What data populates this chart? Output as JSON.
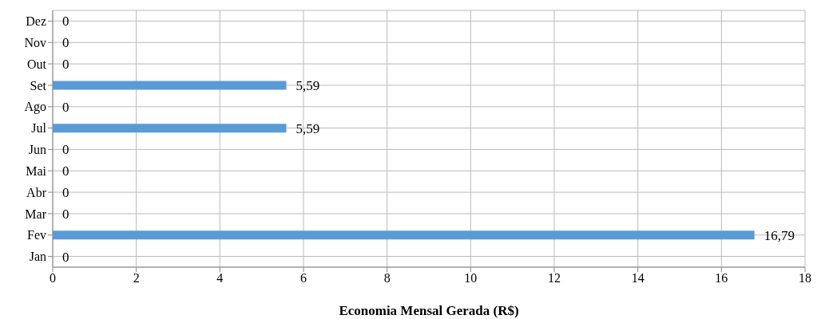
{
  "chart_data": {
    "type": "bar",
    "orientation": "horizontal",
    "xlabel": "Economia Mensal Gerada (R$)",
    "categories": [
      "Dez",
      "Nov",
      "Out",
      "Set",
      "Ago",
      "Jul",
      "Jun",
      "Mai",
      "Abr",
      "Mar",
      "Fev",
      "Jan"
    ],
    "values": [
      0,
      0,
      0,
      5.59,
      0,
      5.59,
      0,
      0,
      0,
      0,
      16.79,
      0
    ],
    "value_labels": [
      "0",
      "0",
      "0",
      "5,59",
      "0",
      "5,59",
      "0",
      "0",
      "0",
      "0",
      "16,79",
      "0"
    ],
    "color": "#5b9bd5",
    "xlim": [
      0,
      18
    ],
    "xticks": [
      0,
      2,
      4,
      6,
      8,
      10,
      12,
      14,
      16,
      18
    ],
    "grid": true,
    "legend": false
  }
}
